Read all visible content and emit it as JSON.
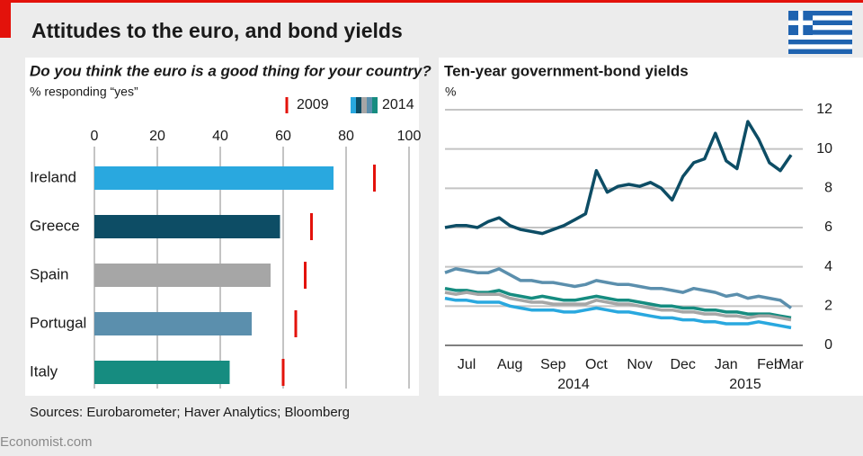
{
  "title": "Attitudes to the euro, and bond yields",
  "source": "Sources: Eurobarometer; Haver Analytics; Bloomberg",
  "footer": "Economist.com",
  "chart_data": [
    {
      "type": "bar",
      "orientation": "horizontal",
      "title": "Do you think the euro is a good thing for your country?",
      "subtitle": "% responding “yes”",
      "categories": [
        "Ireland",
        "Greece",
        "Spain",
        "Portugal",
        "Italy"
      ],
      "series": [
        {
          "name": "2009",
          "marker": "tick",
          "color": "#e3120b",
          "values": [
            89,
            69,
            67,
            64,
            60
          ]
        },
        {
          "name": "2014",
          "colors": [
            "#29a8df",
            "#0d4d65",
            "#a6a6a6",
            "#5b8fad",
            "#168c80"
          ],
          "values": [
            76,
            59,
            56,
            50,
            43
          ]
        }
      ],
      "xlim": [
        0,
        100
      ],
      "xticks": [
        0,
        20,
        40,
        60,
        80,
        100
      ],
      "grid": true,
      "legend": "top-right"
    },
    {
      "type": "line",
      "title": "Ten-year government-bond yields",
      "subtitle": "%",
      "categories": [
        null,
        null,
        "Jul",
        null,
        null,
        null,
        "Aug",
        null,
        null,
        null,
        "Sep",
        null,
        null,
        null,
        "Oct",
        null,
        null,
        null,
        "Nov",
        null,
        null,
        null,
        "Dec",
        null,
        null,
        null,
        "Jan",
        null,
        null,
        null,
        "Feb",
        null,
        "Mar"
      ],
      "years": [
        "2014",
        "2015"
      ],
      "series": [
        {
          "color": "#5b8fad",
          "values": [
            3.7,
            3.9,
            3.8,
            3.7,
            3.7,
            3.9,
            3.6,
            3.3,
            3.3,
            3.2,
            3.2,
            3.1,
            3.0,
            3.1,
            3.3,
            3.2,
            3.1,
            3.1,
            3.0,
            2.9,
            2.9,
            2.8,
            2.7,
            2.9,
            2.8,
            2.7,
            2.5,
            2.6,
            2.4,
            2.5,
            2.4,
            2.3,
            1.9
          ]
        },
        {
          "color": "#168c80",
          "values": [
            2.9,
            2.8,
            2.8,
            2.7,
            2.7,
            2.8,
            2.6,
            2.5,
            2.4,
            2.5,
            2.4,
            2.3,
            2.3,
            2.4,
            2.5,
            2.4,
            2.3,
            2.3,
            2.2,
            2.1,
            2.0,
            2.0,
            1.9,
            1.9,
            1.8,
            1.8,
            1.7,
            1.7,
            1.6,
            1.6,
            1.6,
            1.5,
            1.4
          ]
        },
        {
          "color": "#a6a6a6",
          "values": [
            2.7,
            2.6,
            2.7,
            2.6,
            2.6,
            2.6,
            2.4,
            2.3,
            2.2,
            2.2,
            2.1,
            2.1,
            2.1,
            2.1,
            2.3,
            2.2,
            2.1,
            2.1,
            2.0,
            1.9,
            1.8,
            1.8,
            1.7,
            1.7,
            1.6,
            1.6,
            1.5,
            1.5,
            1.4,
            1.5,
            1.5,
            1.4,
            1.3
          ]
        },
        {
          "color": "#29a8df",
          "values": [
            2.4,
            2.3,
            2.3,
            2.2,
            2.2,
            2.2,
            2.0,
            1.9,
            1.8,
            1.8,
            1.8,
            1.7,
            1.7,
            1.8,
            1.9,
            1.8,
            1.7,
            1.7,
            1.6,
            1.5,
            1.4,
            1.4,
            1.3,
            1.3,
            1.2,
            1.2,
            1.1,
            1.1,
            1.1,
            1.2,
            1.1,
            1.0,
            0.9
          ]
        },
        {
          "color": "#0d4d65",
          "values": [
            6.0,
            6.1,
            6.1,
            6.0,
            6.3,
            6.5,
            6.1,
            5.9,
            5.8,
            5.7,
            5.9,
            6.1,
            6.4,
            6.7,
            8.9,
            7.8,
            8.1,
            8.2,
            8.1,
            8.3,
            8.0,
            7.4,
            8.6,
            9.3,
            9.5,
            10.8,
            9.4,
            9.0,
            11.4,
            10.5,
            9.3,
            8.9,
            9.7
          ]
        }
      ],
      "ylim": [
        0,
        12
      ],
      "yticks": [
        0,
        2,
        4,
        6,
        8,
        10,
        12
      ],
      "grid": true,
      "y_axis_side": "right"
    }
  ]
}
